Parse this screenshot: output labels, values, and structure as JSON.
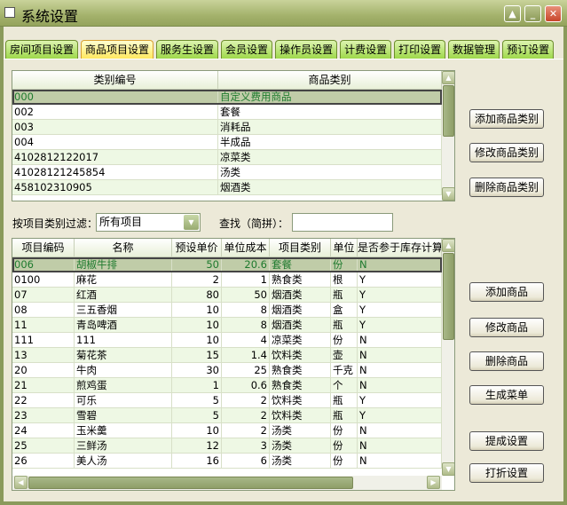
{
  "window": {
    "title": "系统设置"
  },
  "tabs": [
    {
      "label": "房间项目设置"
    },
    {
      "label": "商品项目设置",
      "active": true
    },
    {
      "label": "服务生设置"
    },
    {
      "label": "会员设置"
    },
    {
      "label": "操作员设置"
    },
    {
      "label": "计费设置"
    },
    {
      "label": "打印设置"
    },
    {
      "label": "数据管理"
    },
    {
      "label": "预订设置"
    }
  ],
  "category_table": {
    "columns": [
      "类别编号",
      "商品类别"
    ],
    "rows": [
      [
        "000",
        "自定义费用商品"
      ],
      [
        "002",
        "套餐"
      ],
      [
        "003",
        "消耗品"
      ],
      [
        "004",
        "半成品"
      ],
      [
        "4102812122017",
        "凉菜类"
      ],
      [
        "41028121245854",
        "汤类"
      ],
      [
        "458102310905",
        "烟酒类"
      ]
    ],
    "selected": 0
  },
  "category_buttons": {
    "add": "添加商品类别",
    "edit": "修改商品类别",
    "delete": "删除商品类别"
  },
  "filter": {
    "label": "按项目类别过滤：",
    "value": "所有项目",
    "search_label": "查找（简拼）：",
    "search_value": ""
  },
  "item_table": {
    "columns": [
      "项目编码",
      "名称",
      "预设单价",
      "单位成本",
      "项目类别",
      "单位",
      "是否参于库存计算"
    ],
    "rows": [
      [
        "006",
        "胡椒牛排",
        "50",
        "20.6",
        "套餐",
        "份",
        "N"
      ],
      [
        "0100",
        "麻花",
        "2",
        "1",
        "熟食类",
        "根",
        "Y"
      ],
      [
        "07",
        "红酒",
        "80",
        "50",
        "烟酒类",
        "瓶",
        "Y"
      ],
      [
        "08",
        "三五香烟",
        "10",
        "8",
        "烟酒类",
        "盒",
        "Y"
      ],
      [
        "11",
        "青岛啤酒",
        "10",
        "8",
        "烟酒类",
        "瓶",
        "Y"
      ],
      [
        "111",
        "111",
        "10",
        "4",
        "凉菜类",
        "份",
        "N"
      ],
      [
        "13",
        "菊花茶",
        "15",
        "1.4",
        "饮料类",
        "壶",
        "N"
      ],
      [
        "20",
        "牛肉",
        "30",
        "25",
        "熟食类",
        "千克",
        "N"
      ],
      [
        "21",
        "煎鸡蛋",
        "1",
        "0.6",
        "熟食类",
        "个",
        "N"
      ],
      [
        "22",
        "可乐",
        "5",
        "2",
        "饮料类",
        "瓶",
        "Y"
      ],
      [
        "23",
        "雪碧",
        "5",
        "2",
        "饮料类",
        "瓶",
        "Y"
      ],
      [
        "24",
        "玉米羹",
        "10",
        "2",
        "汤类",
        "份",
        "N"
      ],
      [
        "25",
        "三鲜汤",
        "12",
        "3",
        "汤类",
        "份",
        "N"
      ],
      [
        "26",
        "美人汤",
        "16",
        "6",
        "汤类",
        "份",
        "N"
      ]
    ],
    "selected": 0
  },
  "item_buttons": {
    "add": "添加商品",
    "edit": "修改商品",
    "delete": "删除商品",
    "menu": "生成菜单",
    "commission": "提成设置",
    "discount": "打折设置"
  }
}
